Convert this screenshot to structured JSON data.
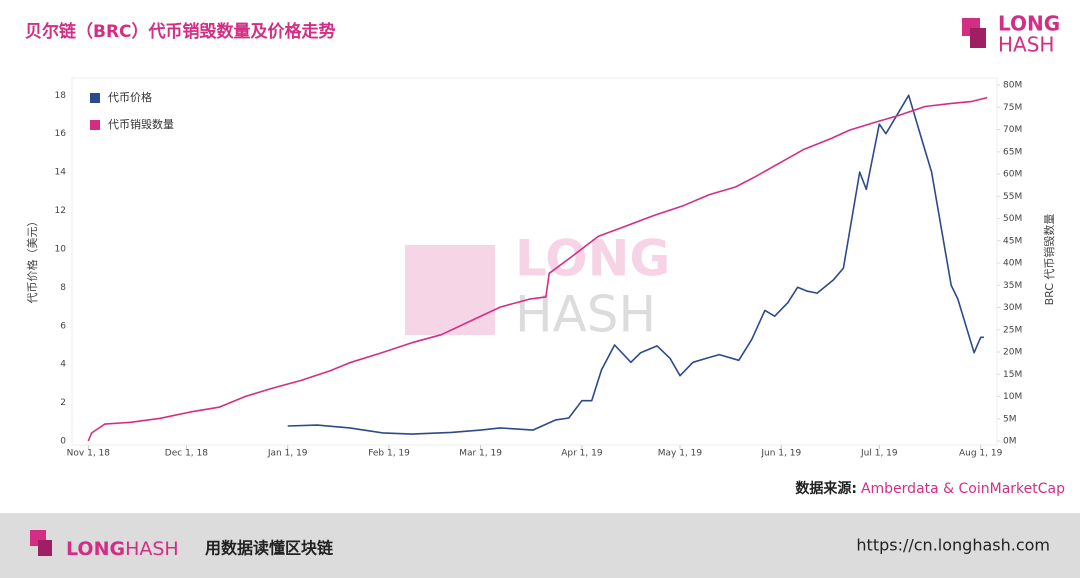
{
  "header": {
    "title": "贝尔链（BRC）代币销毁数量及价格走势"
  },
  "logo": {
    "line1": "LONG",
    "line2": "HASH"
  },
  "chart_data": {
    "type": "line",
    "ylabel": "代币价格（美元）",
    "y2label": "BRC 代币销毁数量",
    "xlim": [
      "2018-10-27",
      "2019-08-06"
    ],
    "xticks": [
      {
        "value": "2018-11-01",
        "label": "Nov 1, 18"
      },
      {
        "value": "2018-12-01",
        "label": "Dec 1, 18"
      },
      {
        "value": "2019-01-01",
        "label": "Jan 1, 19"
      },
      {
        "value": "2019-02-01",
        "label": "Feb 1, 19"
      },
      {
        "value": "2019-03-01",
        "label": "Mar 1, 19"
      },
      {
        "value": "2019-04-01",
        "label": "Apr 1, 19"
      },
      {
        "value": "2019-05-01",
        "label": "May 1, 19"
      },
      {
        "value": "2019-06-01",
        "label": "Jun 1, 19"
      },
      {
        "value": "2019-07-01",
        "label": "Jul 1, 19"
      },
      {
        "value": "2019-08-01",
        "label": "Aug 1, 19"
      }
    ],
    "ylim": [
      0,
      18.9
    ],
    "yticks": [
      0,
      2,
      4,
      6,
      8,
      10,
      12,
      14,
      16,
      18
    ],
    "y2lim": [
      0,
      81600000
    ],
    "y2ticks": [
      {
        "value": 0,
        "label": "0M"
      },
      {
        "value": 5000000,
        "label": "5M"
      },
      {
        "value": 10000000,
        "label": "10M"
      },
      {
        "value": 15000000,
        "label": "15M"
      },
      {
        "value": 20000000,
        "label": "20M"
      },
      {
        "value": 25000000,
        "label": "25M"
      },
      {
        "value": 30000000,
        "label": "30M"
      },
      {
        "value": 35000000,
        "label": "35M"
      },
      {
        "value": 40000000,
        "label": "40M"
      },
      {
        "value": 45000000,
        "label": "45M"
      },
      {
        "value": 50000000,
        "label": "50M"
      },
      {
        "value": 55000000,
        "label": "55M"
      },
      {
        "value": 60000000,
        "label": "60M"
      },
      {
        "value": 65000000,
        "label": "65M"
      },
      {
        "value": 70000000,
        "label": "70M"
      },
      {
        "value": 75000000,
        "label": "75M"
      },
      {
        "value": 80000000,
        "label": "80M"
      }
    ],
    "grid": false,
    "legend": "upper left",
    "series": [
      {
        "name": "代币价格",
        "color": "#2c4a8c",
        "axis": "y",
        "x": [
          "2019-01-01",
          "2019-01-10",
          "2019-01-20",
          "2019-01-30",
          "2019-02-08",
          "2019-02-20",
          "2019-03-01",
          "2019-03-07",
          "2019-03-17",
          "2019-03-24",
          "2019-03-28",
          "2019-04-01",
          "2019-04-04",
          "2019-04-07",
          "2019-04-11",
          "2019-04-16",
          "2019-04-19",
          "2019-04-24",
          "2019-04-28",
          "2019-05-01",
          "2019-05-05",
          "2019-05-09",
          "2019-05-13",
          "2019-05-19",
          "2019-05-23",
          "2019-05-27",
          "2019-05-30",
          "2019-06-03",
          "2019-06-06",
          "2019-06-09",
          "2019-06-12",
          "2019-06-17",
          "2019-06-20",
          "2019-06-23",
          "2019-06-25",
          "2019-06-27",
          "2019-07-01",
          "2019-07-03",
          "2019-07-10",
          "2019-07-14",
          "2019-07-17",
          "2019-07-23",
          "2019-07-25",
          "2019-07-30",
          "2019-08-01",
          "2019-08-02"
        ],
        "values": [
          0.78,
          0.83,
          0.68,
          0.42,
          0.36,
          0.45,
          0.57,
          0.68,
          0.57,
          1.1,
          1.2,
          2.1,
          2.1,
          3.7,
          5.0,
          4.1,
          4.6,
          4.95,
          4.3,
          3.4,
          4.1,
          4.3,
          4.5,
          4.2,
          5.3,
          6.8,
          6.5,
          7.2,
          8.0,
          7.8,
          7.7,
          8.4,
          9.0,
          12.0,
          14.0,
          13.1,
          16.5,
          16.0,
          18.0,
          15.7,
          14.0,
          8.1,
          7.4,
          4.6,
          5.4,
          5.4
        ]
      },
      {
        "name": "代币销毁数量",
        "color": "#d42e84",
        "axis": "y2",
        "x": [
          "2018-11-01",
          "2018-11-02",
          "2018-11-06",
          "2018-11-14",
          "2018-11-23",
          "2018-12-02",
          "2018-12-11",
          "2018-12-19",
          "2018-12-27",
          "2019-01-05",
          "2019-01-14",
          "2019-01-20",
          "2019-01-30",
          "2019-02-08",
          "2019-02-17",
          "2019-02-26",
          "2019-03-07",
          "2019-03-16",
          "2019-03-21",
          "2019-03-22",
          "2019-03-29",
          "2019-04-06",
          "2019-04-14",
          "2019-04-23",
          "2019-05-02",
          "2019-05-10",
          "2019-05-18",
          "2019-05-24",
          "2019-06-01",
          "2019-06-08",
          "2019-06-16",
          "2019-06-22",
          "2019-06-30",
          "2019-07-07",
          "2019-07-15",
          "2019-07-23",
          "2019-07-29",
          "2019-08-03"
        ],
        "values": [
          0,
          1800000,
          3800000,
          4200000,
          5100000,
          6500000,
          7600000,
          10000000,
          11800000,
          13600000,
          15800000,
          17600000,
          19900000,
          22100000,
          23900000,
          27000000,
          30100000,
          31900000,
          32400000,
          37700000,
          41500000,
          46000000,
          48200000,
          50700000,
          52900000,
          55400000,
          57100000,
          59400000,
          62700000,
          65600000,
          67900000,
          69900000,
          71700000,
          73200000,
          75200000,
          75900000,
          76300000,
          77200000
        ]
      }
    ]
  },
  "source": {
    "label": "数据来源:",
    "value": "Amberdata & CoinMarketCap"
  },
  "footer": {
    "slogan": "用数据读懂区块链",
    "url": "https://cn.longhash.com"
  }
}
